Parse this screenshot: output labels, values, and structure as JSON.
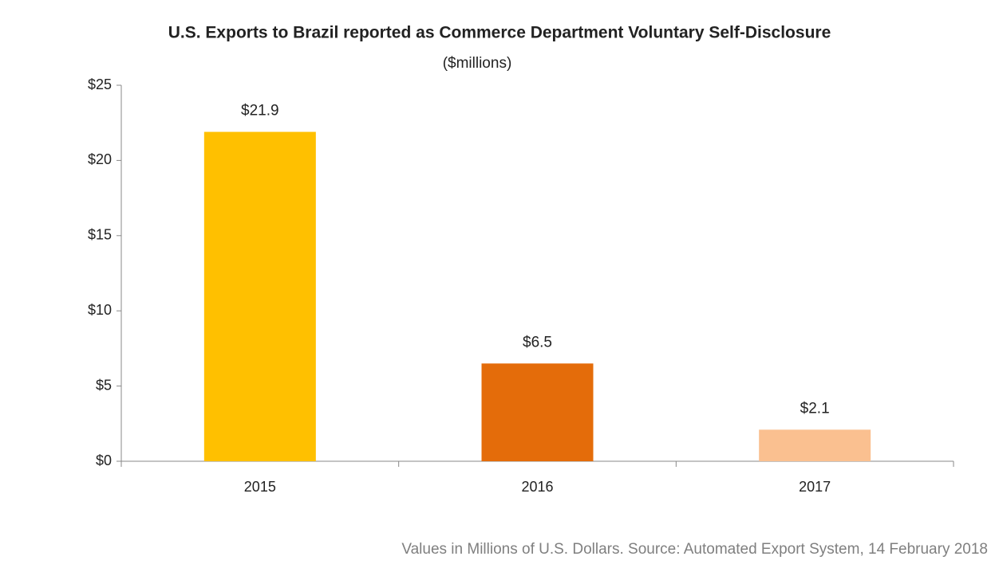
{
  "chart_data": {
    "type": "bar",
    "title": "U.S. Exports to Brazil reported as Commerce Department Voluntary Self-Disclosure",
    "subtitle": "($millions)",
    "categories": [
      "2015",
      "2016",
      "2017"
    ],
    "values": [
      21.9,
      6.5,
      2.1
    ],
    "value_labels": [
      "$21.9",
      "$6.5",
      "$2.1"
    ],
    "colors": [
      "#FFC000",
      "#E46C0A",
      "#FAC090"
    ],
    "ylim": [
      0,
      25
    ],
    "yticks": [
      {
        "value": 0,
        "label": "$0"
      },
      {
        "value": 5,
        "label": "$5"
      },
      {
        "value": 10,
        "label": "$10"
      },
      {
        "value": 15,
        "label": "$15"
      },
      {
        "value": 20,
        "label": "$20"
      },
      {
        "value": 25,
        "label": "$25"
      }
    ],
    "grid": false,
    "source": "Values in Millions of U.S. Dollars. Source: Automated Export System, 14 February 2018"
  }
}
